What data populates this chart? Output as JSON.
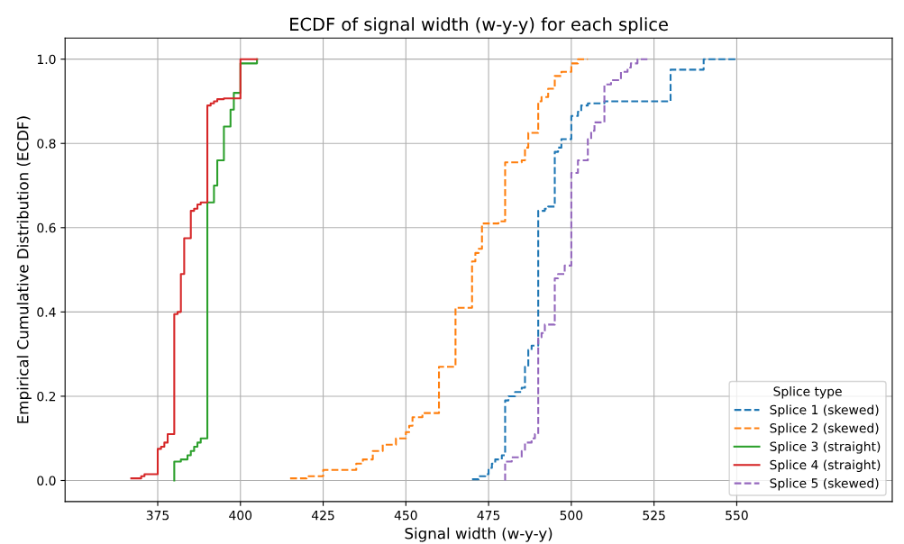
{
  "chart_data": {
    "type": "step",
    "title": "ECDF of signal width (w-y-y) for each splice",
    "xlabel": "Signal width (w-y-y)",
    "ylabel": "Empirical Cumulative Distribution (ECDF)",
    "xlim": [
      347,
      597
    ],
    "xticks": [
      375,
      400,
      425,
      450,
      475,
      500,
      525,
      550
    ],
    "ylim": [
      -0.05,
      1.05
    ],
    "yticks": [
      {
        "value": 0,
        "label": "0.0"
      },
      0.2,
      0.4,
      0.6,
      0.8,
      {
        "value": 1,
        "label": "1.0"
      }
    ],
    "grid": true,
    "legend": "bottom right",
    "legend_title": "Splice type",
    "series": [
      {
        "name": "Splice 1 (skewed)",
        "color": "#1f77b4",
        "line_style": "dashed",
        "x": [
          470,
          472,
          474,
          475,
          476,
          477,
          479,
          480,
          481,
          483,
          485,
          486,
          487,
          488,
          490,
          492,
          493,
          495,
          496,
          497,
          500,
          502,
          503,
          505,
          510,
          530,
          540,
          550
        ],
        "values": [
          0.003,
          0.01,
          0.015,
          0.03,
          0.04,
          0.05,
          0.06,
          0.19,
          0.2,
          0.21,
          0.22,
          0.27,
          0.31,
          0.32,
          0.64,
          0.645,
          0.65,
          0.78,
          0.79,
          0.81,
          0.865,
          0.875,
          0.89,
          0.895,
          0.9,
          0.975,
          1.0,
          1.0
        ]
      },
      {
        "name": "Splice 2 (skewed)",
        "color": "#ff7f0e",
        "line_style": "dashed",
        "x": [
          415,
          420,
          425,
          435,
          437,
          440,
          443,
          447,
          450,
          451,
          452,
          455,
          460,
          465,
          470,
          471,
          472,
          473,
          478,
          480,
          485,
          486,
          487,
          490,
          491,
          493,
          495,
          497,
          500,
          502,
          505
        ],
        "values": [
          0.005,
          0.01,
          0.025,
          0.04,
          0.05,
          0.07,
          0.085,
          0.1,
          0.115,
          0.13,
          0.15,
          0.16,
          0.27,
          0.41,
          0.52,
          0.54,
          0.55,
          0.61,
          0.615,
          0.755,
          0.76,
          0.79,
          0.825,
          0.9,
          0.91,
          0.93,
          0.96,
          0.97,
          0.99,
          1.0,
          1.0
        ]
      },
      {
        "name": "Splice 3 (straight)",
        "color": "#2ca02c",
        "line_style": "solid",
        "x": [
          380,
          380,
          382,
          384,
          385,
          386,
          387,
          388,
          390,
          392,
          393,
          395,
          397,
          398,
          400,
          405
        ],
        "values": [
          0.0,
          0.045,
          0.05,
          0.06,
          0.07,
          0.08,
          0.09,
          0.1,
          0.66,
          0.7,
          0.76,
          0.84,
          0.88,
          0.92,
          0.99,
          1.0
        ]
      },
      {
        "name": "Splice 4 (straight)",
        "color": "#d62728",
        "line_style": "solid",
        "x": [
          367,
          370,
          371,
          375,
          376,
          377,
          378,
          380,
          381,
          382,
          383,
          385,
          386,
          387,
          388,
          390,
          391,
          392,
          393,
          395,
          400,
          405
        ],
        "values": [
          0.005,
          0.01,
          0.015,
          0.075,
          0.08,
          0.09,
          0.11,
          0.395,
          0.4,
          0.49,
          0.575,
          0.64,
          0.645,
          0.655,
          0.66,
          0.89,
          0.895,
          0.9,
          0.905,
          0.907,
          1.0,
          1.0
        ]
      },
      {
        "name": "Splice 5 (skewed)",
        "color": "#9467bd",
        "line_style": "dashed",
        "x": [
          480,
          480,
          482,
          485,
          486,
          488,
          489,
          490,
          491,
          492,
          495,
          496,
          498,
          500,
          502,
          505,
          506,
          507,
          510,
          512,
          515,
          517,
          518,
          520,
          523
        ],
        "values": [
          0.0,
          0.045,
          0.055,
          0.07,
          0.09,
          0.1,
          0.11,
          0.34,
          0.35,
          0.37,
          0.48,
          0.49,
          0.51,
          0.73,
          0.76,
          0.81,
          0.83,
          0.85,
          0.94,
          0.95,
          0.97,
          0.98,
          0.99,
          1.0,
          1.0
        ]
      }
    ]
  }
}
